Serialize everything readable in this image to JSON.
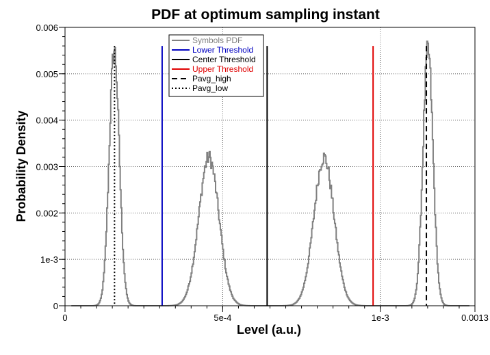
{
  "chart_data": {
    "type": "line",
    "title": "PDF at optimum sampling instant",
    "xlabel": "Level (a.u.)",
    "ylabel": "Probability Density",
    "xlim": [
      0,
      0.0013
    ],
    "ylim": [
      0,
      0.006
    ],
    "grid": true,
    "legend_position": "top-center",
    "x_ticks": [
      {
        "value": 0,
        "label": "0"
      },
      {
        "value": 0.0005,
        "label": "5e-4"
      },
      {
        "value": 0.001,
        "label": "1e-3"
      },
      {
        "value": 0.0013,
        "label": "0.0013"
      }
    ],
    "y_ticks": [
      {
        "value": 0,
        "label": "0"
      },
      {
        "value": 0.001,
        "label": "1e-3"
      },
      {
        "value": 0.002,
        "label": "0.002"
      },
      {
        "value": 0.003,
        "label": "0.003"
      },
      {
        "value": 0.004,
        "label": "0.004"
      },
      {
        "value": 0.005,
        "label": "0.005"
      },
      {
        "value": 0.006,
        "label": "0.006"
      }
    ],
    "series": [
      {
        "name": "Symbols PDF",
        "color": "#808080",
        "style": "solid",
        "peaks": [
          {
            "mean": 0.000155,
            "sigma": 1.6e-05,
            "height": 0.0055
          },
          {
            "mean": 0.000455,
            "sigma": 3.2e-05,
            "height": 0.0032
          },
          {
            "mean": 0.00082,
            "sigma": 3.2e-05,
            "height": 0.0032
          },
          {
            "mean": 0.00115,
            "sigma": 1.6e-05,
            "height": 0.0055
          }
        ]
      },
      {
        "name": "Lower Threshold",
        "color": "#0000c0",
        "style": "solid",
        "x": 0.000308,
        "y_top": 0.0056
      },
      {
        "name": "Center Threshold",
        "color": "#000000",
        "style": "solid",
        "x": 0.000641,
        "y_top": 0.0056
      },
      {
        "name": "Upper Threshold",
        "color": "#e00000",
        "style": "solid",
        "x": 0.000977,
        "y_top": 0.0056
      },
      {
        "name": "Pavg_high",
        "color": "#000000",
        "style": "dashed",
        "x": 0.001146,
        "y_top": 0.0056
      },
      {
        "name": "Pavg_low",
        "color": "#000000",
        "style": "dotted",
        "x": 0.000157,
        "y_top": 0.0056
      }
    ]
  }
}
